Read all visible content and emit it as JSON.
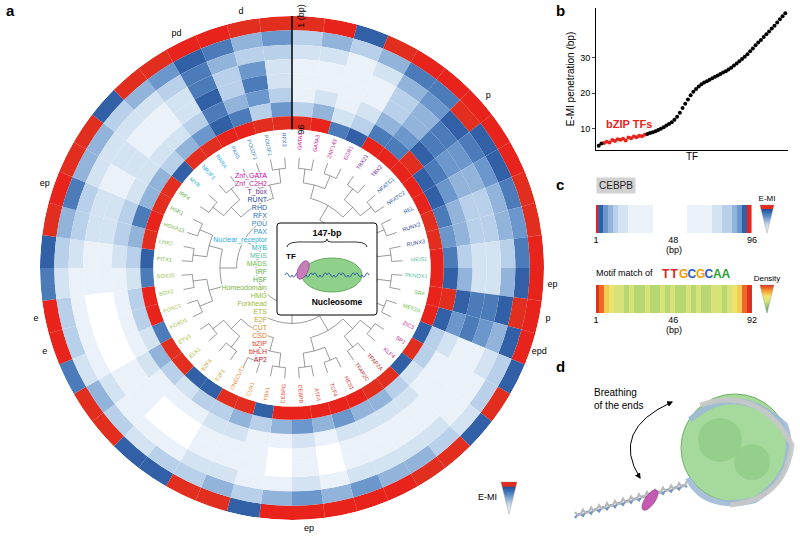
{
  "chart_data": [
    {
      "panel": "a",
      "type": "polar_heatmap",
      "colorbar_label": "E-MI",
      "zlim": [
        0,
        9
      ],
      "rlim": [
        1,
        96
      ],
      "rticks": [
        {
          "value": 1,
          "label": "1 (bp)"
        },
        96
      ],
      "bin_edges": [
        1,
        13,
        25,
        37,
        49,
        61,
        73,
        85,
        96
      ],
      "families": [
        {
          "name": "Znf_GATA",
          "color": "#cc00aa"
        },
        {
          "name": "Znf_C2H2",
          "color": "#c2188f"
        },
        {
          "name": "T_box",
          "color": "#6a2c91"
        },
        {
          "name": "RUNT",
          "color": "#1f3f9e"
        },
        {
          "name": "RHD",
          "color": "#2255aa"
        },
        {
          "name": "RFX",
          "color": "#2a6cb8"
        },
        {
          "name": "POU",
          "color": "#2f7fc1"
        },
        {
          "name": "PAX",
          "color": "#3a8fcc"
        },
        {
          "name": "Nuclear_receptor",
          "color": "#29abe2"
        },
        {
          "name": "MYB",
          "color": "#22b5b5"
        },
        {
          "name": "MEIS",
          "color": "#55bfa0"
        },
        {
          "name": "MADS",
          "color": "#6cbf4a"
        },
        {
          "name": "IRF",
          "color": "#5db344"
        },
        {
          "name": "HSF",
          "color": "#53a93f"
        },
        {
          "name": "Homeodomain",
          "color": "#7cb342"
        },
        {
          "name": "HMG",
          "color": "#8bbf3a"
        },
        {
          "name": "Forkhead",
          "color": "#9bbb3a"
        },
        {
          "name": "ETS",
          "color": "#a5b82b"
        },
        {
          "name": "E2F",
          "color": "#c9a227"
        },
        {
          "name": "CUT",
          "color": "#e08a1e"
        },
        {
          "name": "CSD",
          "color": "#e8741a"
        },
        {
          "name": "bZIP",
          "color": "#e53a1f"
        },
        {
          "name": "bHLH",
          "color": "#d7261e"
        },
        {
          "name": "AP2",
          "color": "#b3161c"
        }
      ],
      "tfs": [
        {
          "name": "GATA1",
          "family": "Znf_GATA"
        },
        {
          "name": "GATA3",
          "family": "Znf_GATA"
        },
        {
          "name": "ZNF143",
          "family": "Znf_C2H2"
        },
        {
          "name": "EGR1",
          "family": "Znf_C2H2"
        },
        {
          "name": "TBX21",
          "family": "T_box"
        },
        {
          "name": "TBX2",
          "family": "T_box"
        },
        {
          "name": "NFATC1",
          "family": "RHD"
        },
        {
          "name": "NFATC2",
          "family": "RHD"
        },
        {
          "name": "REL",
          "family": "RHD"
        },
        {
          "name": "RUNX2",
          "family": "RUNT"
        },
        {
          "name": "RUNX3",
          "family": "RUNT"
        },
        {
          "name": "MEIS1",
          "family": "MEIS"
        },
        {
          "name": "PKNOX1",
          "family": "MEIS"
        },
        {
          "name": "SRF",
          "family": "MADS"
        },
        {
          "name": "MEF2A",
          "family": "MADS"
        },
        {
          "name": "ZIC3",
          "family": "Znf_C2H2"
        },
        {
          "name": "SP1",
          "family": "Znf_C2H2"
        },
        {
          "name": "KLF4",
          "family": "Znf_C2H2"
        },
        {
          "name": "TFAP2A",
          "family": "AP2"
        },
        {
          "name": "TFAP2C",
          "family": "AP2"
        },
        {
          "name": "HES1",
          "family": "bHLH"
        },
        {
          "name": "TCF4",
          "family": "bHLH"
        },
        {
          "name": "ATF4",
          "family": "bZIP"
        },
        {
          "name": "CEBPB",
          "family": "bZIP"
        },
        {
          "name": "CEBPG",
          "family": "bZIP"
        },
        {
          "name": "YBX1",
          "family": "CSD"
        },
        {
          "name": "CUX1",
          "family": "CUT"
        },
        {
          "name": "ONECUT1",
          "family": "CUT"
        },
        {
          "name": "E2F1",
          "family": "E2F"
        },
        {
          "name": "E2F6",
          "family": "E2F"
        },
        {
          "name": "ELK1",
          "family": "ETS"
        },
        {
          "name": "ETV1",
          "family": "ETS"
        },
        {
          "name": "FOXO1",
          "family": "Forkhead"
        },
        {
          "name": "FOXC1",
          "family": "Forkhead"
        },
        {
          "name": "SOX2",
          "family": "HMG"
        },
        {
          "name": "SOX10",
          "family": "HMG"
        },
        {
          "name": "PITX1",
          "family": "Homeodomain"
        },
        {
          "name": "LHX2",
          "family": "Homeodomain"
        },
        {
          "name": "HOXA13",
          "family": "Homeodomain"
        },
        {
          "name": "HSF1",
          "family": "HSF"
        },
        {
          "name": "IRF4",
          "family": "IRF"
        },
        {
          "name": "MYB",
          "family": "MYB"
        },
        {
          "name": "NR2F1",
          "family": "Nuclear_receptor"
        },
        {
          "name": "RARA",
          "family": "Nuclear_receptor"
        },
        {
          "name": "PAX5",
          "family": "PAX"
        },
        {
          "name": "POU2F1",
          "family": "POU"
        },
        {
          "name": "POU3F1",
          "family": "POU"
        },
        {
          "name": "RFX3",
          "family": "RFX"
        }
      ],
      "cells": [
        [
          8,
          3,
          2,
          1,
          1,
          1,
          3,
          8
        ],
        [
          9,
          4,
          2,
          1,
          1,
          2,
          4,
          9
        ],
        [
          7,
          3,
          1,
          1,
          1,
          1,
          2,
          6
        ],
        [
          8,
          4,
          2,
          1,
          1,
          2,
          3,
          7
        ],
        [
          9,
          6,
          4,
          3,
          3,
          4,
          6,
          9
        ],
        [
          9,
          6,
          5,
          4,
          4,
          5,
          6,
          9
        ],
        [
          9,
          8,
          7,
          6,
          6,
          7,
          8,
          9
        ],
        [
          9,
          7,
          6,
          5,
          5,
          6,
          7,
          9
        ],
        [
          9,
          7,
          5,
          4,
          4,
          5,
          7,
          9
        ],
        [
          8,
          6,
          4,
          3,
          3,
          4,
          6,
          8
        ],
        [
          8,
          5,
          4,
          3,
          3,
          4,
          5,
          8
        ],
        [
          9,
          6,
          3,
          2,
          2,
          3,
          6,
          9
        ],
        [
          9,
          7,
          4,
          2,
          2,
          4,
          7,
          9
        ],
        [
          9,
          8,
          7,
          6,
          6,
          7,
          8,
          9
        ],
        [
          9,
          7,
          4,
          5,
          6,
          5,
          7,
          9
        ],
        [
          7,
          3,
          2,
          1,
          1,
          2,
          3,
          7
        ],
        [
          8,
          3,
          1,
          1,
          1,
          1,
          3,
          8
        ],
        [
          7,
          2,
          1,
          1,
          1,
          1,
          2,
          7
        ],
        [
          8,
          3,
          2,
          1,
          1,
          2,
          3,
          8
        ],
        [
          8,
          4,
          2,
          1,
          1,
          2,
          4,
          8
        ],
        [
          9,
          4,
          2,
          1,
          1,
          2,
          4,
          9
        ],
        [
          9,
          5,
          2,
          1,
          1,
          2,
          5,
          9
        ],
        [
          9,
          4,
          1,
          0,
          0,
          1,
          4,
          9
        ],
        [
          9,
          5,
          2,
          1,
          1,
          2,
          5,
          9
        ],
        [
          9,
          4,
          1,
          0,
          0,
          1,
          4,
          9
        ],
        [
          7,
          3,
          1,
          1,
          1,
          1,
          3,
          7
        ],
        [
          8,
          4,
          2,
          1,
          1,
          2,
          4,
          8
        ],
        [
          8,
          3,
          2,
          1,
          1,
          2,
          3,
          8
        ],
        [
          7,
          3,
          1,
          0,
          0,
          1,
          3,
          7
        ],
        [
          7,
          2,
          1,
          0,
          0,
          1,
          2,
          7
        ],
        [
          8,
          3,
          1,
          1,
          1,
          1,
          3,
          8
        ],
        [
          8,
          4,
          2,
          1,
          1,
          2,
          4,
          8
        ],
        [
          6,
          2,
          1,
          0,
          0,
          1,
          2,
          6
        ],
        [
          9,
          3,
          1,
          0,
          0,
          1,
          3,
          9
        ],
        [
          9,
          3,
          1,
          0,
          0,
          1,
          3,
          9
        ],
        [
          6,
          2,
          1,
          1,
          1,
          1,
          2,
          6
        ],
        [
          7,
          3,
          2,
          1,
          1,
          2,
          3,
          7
        ],
        [
          8,
          4,
          3,
          2,
          2,
          3,
          4,
          8
        ],
        [
          9,
          6,
          3,
          2,
          2,
          3,
          6,
          9
        ],
        [
          8,
          4,
          2,
          1,
          1,
          2,
          4,
          8
        ],
        [
          8,
          4,
          2,
          2,
          2,
          2,
          4,
          8
        ],
        [
          7,
          3,
          2,
          1,
          1,
          2,
          3,
          7
        ],
        [
          8,
          4,
          2,
          1,
          1,
          2,
          4,
          8
        ],
        [
          8,
          5,
          3,
          2,
          2,
          3,
          5,
          8
        ],
        [
          9,
          7,
          6,
          6,
          7,
          6,
          7,
          9
        ],
        [
          9,
          6,
          4,
          3,
          3,
          4,
          6,
          9
        ],
        [
          8,
          4,
          3,
          5,
          6,
          5,
          3,
          8
        ],
        [
          8,
          5,
          3,
          2,
          2,
          3,
          5,
          8
        ]
      ],
      "sector_labels": [
        {
          "text": "p",
          "tf_index": 6
        },
        {
          "text": "ep",
          "tf_index": 12
        },
        {
          "text": "p",
          "tf_index": 13
        },
        {
          "text": "epd",
          "tf_index": 14
        },
        {
          "text": "ep",
          "tf_index": 23
        },
        {
          "text": "e",
          "tf_index": 33
        },
        {
          "text": "e",
          "tf_index": 34
        },
        {
          "text": "ep",
          "tf_index": 38
        },
        {
          "text": "pd",
          "tf_index": 44
        },
        {
          "text": "d",
          "tf_index": 46
        }
      ],
      "inset": {
        "span": "147-bp",
        "tf": "TF",
        "nucleosome": "Nucleosome"
      }
    },
    {
      "panel": "b",
      "type": "scatter",
      "xlabel": "TF",
      "ylabel": "E-MI penetration (bp)",
      "xlim": [
        0,
        71
      ],
      "ylim": [
        4,
        44
      ],
      "yticks": [
        10,
        20,
        30
      ],
      "tick_labels": "y",
      "series": [
        {
          "name": "bZIP TFs",
          "color": "#e8231b",
          "x": [
            3,
            4,
            5,
            6,
            7,
            8,
            9,
            10,
            11,
            12,
            13,
            14,
            15,
            16,
            17,
            18
          ],
          "values": [
            6.0,
            6.3,
            6.1,
            6.8,
            6.5,
            7.0,
            6.9,
            7.2,
            6.7,
            7.5,
            7.3,
            7.8,
            7.6,
            8.0,
            7.9,
            8.3
          ]
        },
        {
          "color": "#000000",
          "x": [
            1,
            2,
            19,
            20,
            21,
            22,
            23,
            24,
            25,
            26,
            27,
            28,
            29,
            30,
            31,
            32,
            33,
            34,
            35,
            36,
            37,
            38,
            39,
            40,
            41,
            42,
            43,
            44,
            45,
            46,
            47,
            48,
            49,
            50,
            51,
            52,
            53,
            54,
            55,
            56,
            57,
            58,
            59,
            60,
            61,
            62,
            63,
            64,
            65,
            66,
            67,
            68,
            69,
            70
          ],
          "values": [
            5.2,
            5.8,
            8.5,
            8.8,
            9.0,
            9.3,
            9.6,
            10,
            10.4,
            10.9,
            11.3,
            11.8,
            12.5,
            13.4,
            14.5,
            15.8,
            17.0,
            18.2,
            19.4,
            20.4,
            21.2,
            21.9,
            22.5,
            23.0,
            23.4,
            23.8,
            24.2,
            24.6,
            25.0,
            25.4,
            25.8,
            26.2,
            26.7,
            27.2,
            27.8,
            28.4,
            29.0,
            29.6,
            30.3,
            31.0,
            31.8,
            32.6,
            33.5,
            34.3,
            35.0,
            35.8,
            36.6,
            37.4,
            38.2,
            39.0,
            39.9,
            40.8,
            41.7,
            42.5
          ]
        }
      ]
    },
    {
      "panel": "c",
      "type": "heatmap",
      "title": "CEBPB",
      "colorbar_label": "E-MI",
      "zlim": [
        0,
        9
      ],
      "xlabel": "(bp)",
      "xlim": [
        1,
        96
      ],
      "xticks": [
        1,
        48,
        96
      ],
      "x": [
        1,
        4,
        7,
        10,
        13,
        16,
        19,
        22,
        25,
        28,
        31,
        34,
        37,
        40,
        43,
        46,
        49,
        52,
        55,
        58,
        61,
        64,
        67,
        70,
        73,
        76,
        79,
        82,
        85,
        88,
        91,
        94
      ],
      "values": [
        9,
        7,
        5,
        4,
        3,
        2,
        2,
        1,
        1,
        1,
        1,
        1,
        0,
        0,
        0,
        0,
        0,
        0,
        0,
        1,
        1,
        1,
        1,
        1,
        2,
        2,
        3,
        3,
        4,
        5,
        7,
        9
      ]
    },
    {
      "type": "heatmap",
      "title": "Motif match of",
      "motif": "TTGCGCAA",
      "colorbar_label": "Density",
      "zlim": [
        0,
        9
      ],
      "xlabel": "(bp)",
      "xlim": [
        1,
        92
      ],
      "xticks": [
        1,
        46,
        92
      ],
      "x": [
        1,
        4,
        7,
        10,
        13,
        16,
        19,
        22,
        25,
        28,
        31,
        34,
        37,
        40,
        43,
        46,
        49,
        52,
        55,
        58,
        61,
        64,
        67,
        70,
        73,
        76,
        79,
        82,
        85,
        88,
        91
      ],
      "values": [
        9,
        8,
        6,
        5,
        4,
        4,
        3,
        4,
        3,
        3,
        4,
        3,
        3,
        4,
        3,
        4,
        3,
        3,
        4,
        3,
        4,
        3,
        3,
        4,
        4,
        3,
        4,
        5,
        6,
        8,
        9
      ]
    }
  ],
  "diagram": {
    "panel": "d",
    "label": [
      "Breathing",
      "of the ends"
    ]
  }
}
